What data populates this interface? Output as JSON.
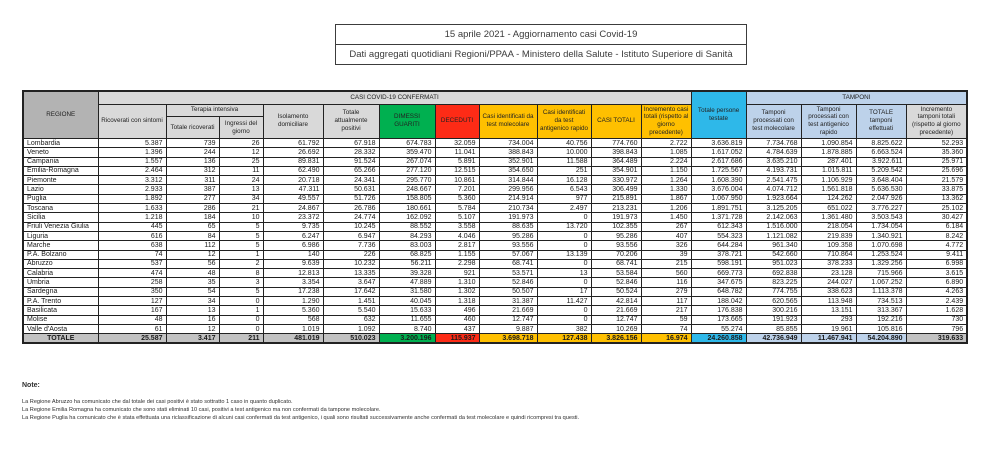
{
  "title": {
    "line1": "15 aprile 2021 - Aggiornamento casi Covid-19",
    "line2": "Dati aggregati quotidiani Regioni/PPAA - Ministero della Salute - Istituto Superiore di Sanità"
  },
  "colors": {
    "green": "#00b050",
    "red": "#fd2b16",
    "yellow": "#ffc000",
    "cyan": "#2eb8e9",
    "light_blue": "#bdd2ea",
    "header_gray": "#d9d9d9",
    "regione_gray": "#b3b3b3",
    "totale_gray": "#c2c2c2"
  },
  "table": {
    "bands": {
      "confermati": "CASI COVID-19 CONFERMATI",
      "tamponi": "TAMPONI"
    },
    "headers": {
      "regione": "REGIONE",
      "ricoverati": "Ricoverati con sintomi",
      "terapia_intensiva": "Terapia intensiva",
      "ti_totale": "Totale ricoverati",
      "ti_ingressi": "Ingressi del giorno",
      "isolamento": "Isolamento domiciliare",
      "positivi": "Totale attualmente positivi",
      "dimessi": "DIMESSI GUARITI",
      "deceduti": "DECEDUTI",
      "casi_molecolare": "Casi identificati da test molecolare",
      "casi_antigenico": "Casi identificati da test antigenico rapido",
      "casi_totali": "CASI TOTALI",
      "incremento_casi": "Incremento casi totali (rispetto al giorno precedente)",
      "testate": "Totale persone testate",
      "tamponi_molecolare": "Tamponi processati con test molecolare",
      "tamponi_antigenico": "Tamponi processati con test antigenico rapido",
      "tamponi_totale": "TOTALE tamponi effettuati",
      "incremento_tamponi": "Incremento tamponi totali (rispetto al giorno precedente)"
    },
    "rows": [
      {
        "regione": "Lombardia",
        "values": [
          "5.387",
          "739",
          "26",
          "61.792",
          "67.918",
          "674.783",
          "32.059",
          "734.004",
          "40.756",
          "774.760",
          "2.722",
          "3.636.819",
          "7.734.768",
          "1.090.854",
          "8.825.622",
          "52.293"
        ]
      },
      {
        "regione": "Veneto",
        "values": [
          "1.396",
          "244",
          "12",
          "26.692",
          "28.332",
          "359.470",
          "11.041",
          "388.843",
          "10.000",
          "398.843",
          "1.085",
          "1.617.052",
          "4.784.639",
          "1.878.885",
          "6.663.524",
          "35.360"
        ]
      },
      {
        "regione": "Campania",
        "values": [
          "1.557",
          "136",
          "25",
          "89.831",
          "91.524",
          "267.074",
          "5.891",
          "352.901",
          "11.588",
          "364.489",
          "2.224",
          "2.617.686",
          "3.635.210",
          "287.401",
          "3.922.611",
          "25.971"
        ]
      },
      {
        "regione": "Emilia-Romagna",
        "values": [
          "2.464",
          "312",
          "11",
          "62.490",
          "65.266",
          "277.120",
          "12.515",
          "354.650",
          "251",
          "354.901",
          "1.150",
          "1.725.567",
          "4.193.731",
          "1.015.811",
          "5.209.542",
          "25.696"
        ]
      },
      {
        "regione": "Piemonte",
        "values": [
          "3.312",
          "311",
          "24",
          "20.718",
          "24.341",
          "295.770",
          "10.861",
          "314.844",
          "16.128",
          "330.972",
          "1.264",
          "1.608.390",
          "2.541.475",
          "1.106.929",
          "3.648.404",
          "21.579"
        ]
      },
      {
        "regione": "Lazio",
        "values": [
          "2.933",
          "387",
          "13",
          "47.311",
          "50.631",
          "248.667",
          "7.201",
          "299.956",
          "6.543",
          "306.499",
          "1.330",
          "3.676.004",
          "4.074.712",
          "1.561.818",
          "5.636.530",
          "33.875"
        ]
      },
      {
        "regione": "Puglia",
        "values": [
          "1.892",
          "277",
          "34",
          "49.557",
          "51.726",
          "158.805",
          "5.360",
          "214.914",
          "977",
          "215.891",
          "1.867",
          "1.067.950",
          "1.923.664",
          "124.262",
          "2.047.926",
          "13.362"
        ]
      },
      {
        "regione": "Toscana",
        "values": [
          "1.633",
          "286",
          "21",
          "24.867",
          "26.786",
          "180.661",
          "5.784",
          "210.734",
          "2.497",
          "213.231",
          "1.206",
          "1.891.751",
          "3.125.205",
          "651.022",
          "3.776.227",
          "25.102"
        ]
      },
      {
        "regione": "Sicilia",
        "values": [
          "1.218",
          "184",
          "10",
          "23.372",
          "24.774",
          "162.092",
          "5.107",
          "191.973",
          "0",
          "191.973",
          "1.450",
          "1.371.728",
          "2.142.063",
          "1.361.480",
          "3.503.543",
          "30.427"
        ]
      },
      {
        "regione": "Friuli Venezia Giulia",
        "values": [
          "445",
          "65",
          "5",
          "9.735",
          "10.245",
          "88.552",
          "3.558",
          "88.635",
          "13.720",
          "102.355",
          "267",
          "612.343",
          "1.516.000",
          "218.054",
          "1.734.054",
          "6.184"
        ]
      },
      {
        "regione": "Liguria",
        "values": [
          "616",
          "84",
          "5",
          "6.247",
          "6.947",
          "84.293",
          "4.046",
          "95.286",
          "0",
          "95.286",
          "407",
          "554.323",
          "1.121.082",
          "219.839",
          "1.340.921",
          "8.242"
        ]
      },
      {
        "regione": "Marche",
        "values": [
          "638",
          "112",
          "5",
          "6.986",
          "7.736",
          "83.003",
          "2.817",
          "93.556",
          "0",
          "93.556",
          "326",
          "644.284",
          "961.340",
          "109.358",
          "1.070.698",
          "4.772"
        ]
      },
      {
        "regione": "P.A. Bolzano",
        "values": [
          "74",
          "12",
          "1",
          "140",
          "226",
          "68.825",
          "1.155",
          "57.067",
          "13.139",
          "70.206",
          "39",
          "378.721",
          "542.660",
          "710.864",
          "1.253.524",
          "9.411"
        ]
      },
      {
        "regione": "Abruzzo",
        "values": [
          "537",
          "56",
          "2",
          "9.639",
          "10.232",
          "56.211",
          "2.298",
          "68.741",
          "0",
          "68.741",
          "215",
          "598.191",
          "951.023",
          "378.233",
          "1.329.256",
          "6.998"
        ]
      },
      {
        "regione": "Calabria",
        "values": [
          "474",
          "48",
          "8",
          "12.813",
          "13.335",
          "39.328",
          "921",
          "53.571",
          "13",
          "53.584",
          "560",
          "669.773",
          "692.838",
          "23.128",
          "715.966",
          "3.615"
        ]
      },
      {
        "regione": "Umbria",
        "values": [
          "258",
          "35",
          "3",
          "3.354",
          "3.647",
          "47.889",
          "1.310",
          "52.846",
          "0",
          "52.846",
          "116",
          "347.675",
          "823.225",
          "244.027",
          "1.067.252",
          "6.890"
        ]
      },
      {
        "regione": "Sardegna",
        "values": [
          "350",
          "54",
          "5",
          "17.238",
          "17.642",
          "31.580",
          "1.302",
          "50.507",
          "17",
          "50.524",
          "279",
          "648.782",
          "774.755",
          "338.623",
          "1.113.378",
          "4.263"
        ]
      },
      {
        "regione": "P.A. Trento",
        "values": [
          "127",
          "34",
          "0",
          "1.290",
          "1.451",
          "40.045",
          "1.318",
          "31.387",
          "11.427",
          "42.814",
          "117",
          "188.042",
          "620.565",
          "113.948",
          "734.513",
          "2.439"
        ]
      },
      {
        "regione": "Basilicata",
        "values": [
          "167",
          "13",
          "1",
          "5.360",
          "5.540",
          "15.633",
          "496",
          "21.669",
          "0",
          "21.669",
          "217",
          "176.838",
          "300.216",
          "13.151",
          "313.367",
          "1.628"
        ]
      },
      {
        "regione": "Molise",
        "values": [
          "48",
          "16",
          "0",
          "568",
          "632",
          "11.655",
          "460",
          "12.747",
          "0",
          "12.747",
          "59",
          "173.665",
          "191.923",
          "293",
          "192.216",
          "730"
        ]
      },
      {
        "regione": "Valle d'Aosta",
        "values": [
          "61",
          "12",
          "0",
          "1.019",
          "1.092",
          "8.740",
          "437",
          "9.887",
          "382",
          "10.269",
          "74",
          "55.274",
          "85.855",
          "19.961",
          "105.816",
          "796"
        ]
      }
    ],
    "totale": {
      "label": "TOTALE",
      "values": [
        "25.587",
        "3.417",
        "211",
        "481.019",
        "510.023",
        "3.200.196",
        "115.937",
        "3.698.718",
        "127.438",
        "3.826.156",
        "16.974",
        "24.260.858",
        "42.736.949",
        "11.467.941",
        "54.204.890",
        "319.633"
      ]
    }
  },
  "notes": {
    "heading": "Note:",
    "lines": [
      "La Regione Abruzzo ha comunicato che dal totale dei casi positivi è stato sottratto 1 caso in quanto duplicato.",
      "La Regione Emilia Romagna ha comunicato che sono stati eliminati 10 casi, positivi a test antigenico ma non confermati da tampone molecolare.",
      "La Regione Puglia ha comunicato che è stata effettuata una riclassificazione di alcuni casi confermati da test antigenico, i quali sono risultati successivamente anche confermati da test molecolare e quindi ricompresi tra questi."
    ]
  }
}
